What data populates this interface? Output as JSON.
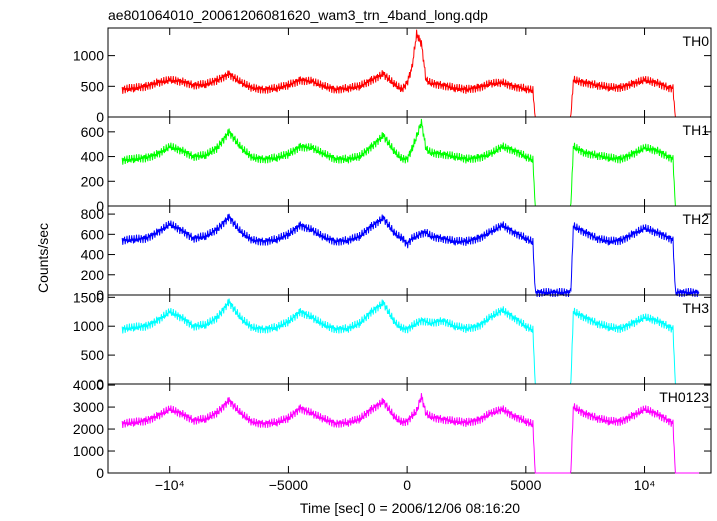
{
  "title": "ae801064010_20061206081620_wam3_trn_4band_long.qdp",
  "xlabel": "Time [sec] 0 = 2006/12/06 08:16:20",
  "ylabel": "Counts/sec",
  "chart_data": {
    "type": "line",
    "title": "ae801064010_20061206081620_wam3_trn_4band_long.qdp",
    "xlabel": "Time [sec] 0 = 2006/12/06 08:16:20",
    "ylabel": "Counts/sec",
    "xlim": [
      -12600,
      12800
    ],
    "x_ticks": [
      {
        "value": -10000,
        "label": "−10⁴"
      },
      {
        "value": -5000,
        "label": "−5000"
      },
      {
        "value": 0,
        "label": "0"
      },
      {
        "value": 5000,
        "label": "5000"
      },
      {
        "value": 10000,
        "label": "10⁴"
      }
    ],
    "x": [
      -12000,
      -11500,
      -11000,
      -10500,
      -10000,
      -9500,
      -9000,
      -8500,
      -8000,
      -7500,
      -7000,
      -6500,
      -6000,
      -5500,
      -5000,
      -4500,
      -4000,
      -3500,
      -3000,
      -2500,
      -2000,
      -1500,
      -1000,
      -500,
      -200,
      0,
      200,
      400,
      600,
      800,
      1000,
      1500,
      2000,
      2500,
      3000,
      3500,
      4000,
      4500,
      5000,
      5300,
      5400,
      6900,
      7000,
      7500,
      8000,
      8500,
      9000,
      9500,
      10000,
      10500,
      11000,
      11200,
      11300,
      12300
    ],
    "series": [
      {
        "name": "TH0",
        "color": "#ff0000",
        "ylim": [
          0,
          1450
        ],
        "yticks": [
          0,
          500,
          1000
        ],
        "values": [
          450,
          470,
          500,
          560,
          600,
          580,
          520,
          530,
          600,
          700,
          560,
          470,
          450,
          470,
          520,
          600,
          580,
          500,
          450,
          470,
          500,
          600,
          700,
          520,
          450,
          560,
          800,
          1350,
          1200,
          600,
          550,
          520,
          470,
          450,
          480,
          540,
          560,
          500,
          460,
          430,
          0,
          0,
          600,
          560,
          520,
          480,
          480,
          540,
          600,
          560,
          480,
          470,
          0,
          0
        ]
      },
      {
        "name": "TH1",
        "color": "#00ff00",
        "ylim": [
          0,
          720
        ],
        "yticks": [
          0,
          200,
          400,
          600
        ],
        "values": [
          370,
          380,
          390,
          420,
          480,
          450,
          400,
          410,
          470,
          600,
          470,
          390,
          380,
          390,
          420,
          480,
          470,
          420,
          380,
          380,
          400,
          480,
          570,
          430,
          380,
          380,
          460,
          560,
          680,
          460,
          430,
          420,
          400,
          380,
          390,
          420,
          480,
          450,
          400,
          370,
          0,
          0,
          480,
          430,
          410,
          390,
          380,
          420,
          470,
          450,
          400,
          380,
          0,
          0
        ]
      },
      {
        "name": "TH2",
        "color": "#0000ff",
        "ylim": [
          0,
          880
        ],
        "yticks": [
          0,
          200,
          400,
          600,
          800
        ],
        "values": [
          540,
          550,
          560,
          620,
          700,
          640,
          560,
          580,
          650,
          770,
          620,
          540,
          530,
          550,
          600,
          690,
          640,
          570,
          530,
          540,
          580,
          680,
          760,
          600,
          560,
          500,
          560,
          580,
          610,
          620,
          580,
          560,
          530,
          530,
          560,
          620,
          690,
          620,
          560,
          520,
          25,
          25,
          680,
          620,
          560,
          530,
          540,
          600,
          660,
          620,
          570,
          540,
          25,
          25
        ]
      },
      {
        "name": "TH3",
        "color": "#00ffff",
        "ylim": [
          0,
          1540
        ],
        "yticks": [
          0,
          500,
          1000,
          1500
        ],
        "values": [
          950,
          980,
          1000,
          1100,
          1250,
          1150,
          1000,
          1020,
          1150,
          1420,
          1130,
          970,
          950,
          980,
          1080,
          1250,
          1150,
          1020,
          950,
          960,
          1050,
          1250,
          1400,
          1050,
          960,
          950,
          1000,
          1050,
          1100,
          1080,
          1050,
          1100,
          1000,
          960,
          1000,
          1150,
          1280,
          1150,
          1000,
          930,
          0,
          0,
          1250,
          1150,
          1050,
          980,
          960,
          1050,
          1150,
          1100,
          1000,
          950,
          0,
          0
        ]
      },
      {
        "name": "TH0123",
        "color": "#ff00ff",
        "ylim": [
          0,
          4050
        ],
        "yticks": [
          0,
          1000,
          2000,
          3000,
          4000
        ],
        "values": [
          2250,
          2300,
          2380,
          2600,
          2900,
          2700,
          2400,
          2450,
          2750,
          3300,
          2700,
          2300,
          2250,
          2300,
          2500,
          2950,
          2700,
          2450,
          2250,
          2300,
          2450,
          2900,
          3250,
          2500,
          2300,
          2350,
          2600,
          2800,
          3500,
          2700,
          2550,
          2450,
          2350,
          2300,
          2400,
          2700,
          2900,
          2600,
          2350,
          2200,
          0,
          0,
          3000,
          2700,
          2500,
          2350,
          2350,
          2600,
          2900,
          2700,
          2400,
          2250,
          0,
          0
        ]
      }
    ]
  }
}
